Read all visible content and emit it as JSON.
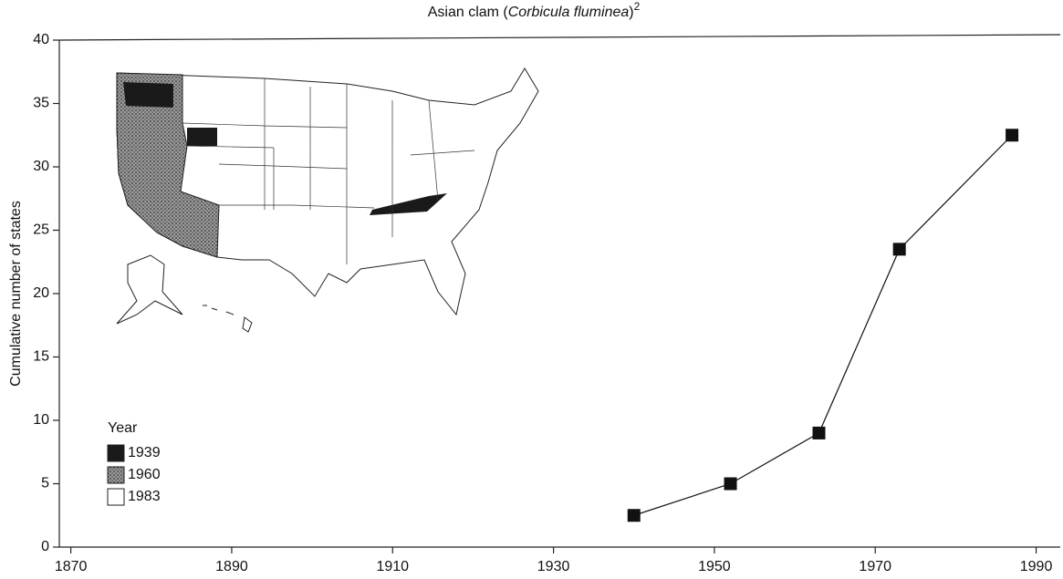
{
  "chart_data": {
    "type": "line",
    "title": [
      "Asian clam (",
      "Corbicula fluminea",
      ")",
      "2"
    ],
    "ylabel": "Cumulative number of states",
    "x": [
      1940,
      1952,
      1963,
      1973,
      1987
    ],
    "series": [
      {
        "name": "Asian clam",
        "color": "#111111",
        "values": [
          2.5,
          5,
          9,
          23.5,
          32.5
        ]
      }
    ],
    "xlim": [
      1868,
      1993
    ],
    "xticks": [
      1870,
      1890,
      1910,
      1930,
      1950,
      1970,
      1990
    ],
    "ylim": [
      0,
      40
    ],
    "yticks": [
      0,
      5,
      10,
      15,
      20,
      25,
      30,
      35,
      40
    ],
    "legend": {
      "title": "Year",
      "items": [
        "1939",
        "1960",
        "1983"
      ],
      "colors": [
        "#1a1a1a",
        "#6a6a6a",
        "#ffffff"
      ]
    }
  }
}
